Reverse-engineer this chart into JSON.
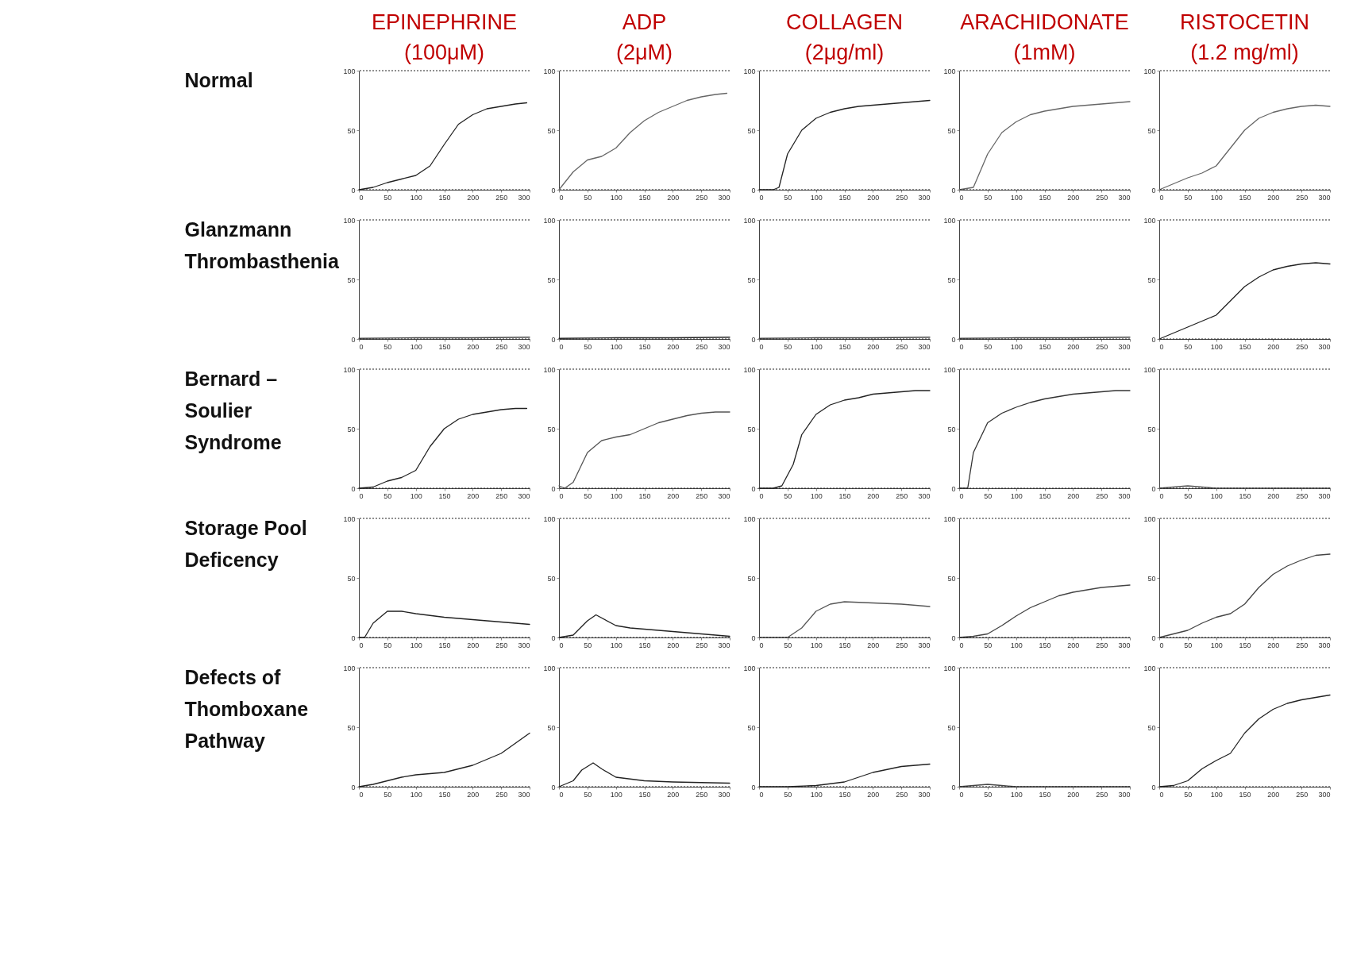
{
  "chart_data": [
    {
      "type": "line",
      "title": "EPINEPHRINE\n(100μM)",
      "ylabel": "Normal",
      "x": [
        0,
        25,
        50,
        75,
        100,
        125,
        150,
        175,
        200,
        225,
        250,
        275,
        295
      ],
      "values": [
        0,
        2,
        6,
        9,
        12,
        20,
        38,
        55,
        63,
        68,
        70,
        72,
        73
      ],
      "color": "#222222",
      "xlim": [
        0,
        300
      ],
      "xticks": [
        0,
        50,
        100,
        150,
        200,
        250,
        300
      ],
      "ylim": [
        0,
        100
      ],
      "yticks": [
        0,
        50,
        100
      ],
      "ref_lines": [
        {
          "axis": "y",
          "value": 0,
          "line_style": "dotted"
        },
        {
          "axis": "y",
          "value": 100,
          "line_style": "dotted"
        }
      ]
    },
    {
      "type": "line",
      "title": "ADP\n(2μM)",
      "x": [
        0,
        25,
        50,
        75,
        100,
        125,
        150,
        175,
        200,
        225,
        250,
        275,
        295
      ],
      "values": [
        0,
        15,
        25,
        28,
        35,
        48,
        58,
        65,
        70,
        75,
        78,
        80,
        81
      ],
      "color": "#666666",
      "xlim": [
        0,
        300
      ],
      "xticks": [
        0,
        50,
        100,
        150,
        200,
        250,
        300
      ],
      "ylim": [
        0,
        100
      ],
      "yticks": [
        0,
        50,
        100
      ],
      "ref_lines": [
        {
          "axis": "y",
          "value": 0,
          "line_style": "dotted"
        },
        {
          "axis": "y",
          "value": 100,
          "line_style": "dotted"
        }
      ]
    },
    {
      "type": "line",
      "title": "COLLAGEN\n(2μg/ml)",
      "x": [
        0,
        25,
        35,
        50,
        75,
        100,
        125,
        150,
        175,
        200,
        225,
        250,
        275,
        300
      ],
      "values": [
        0,
        0,
        2,
        30,
        50,
        60,
        65,
        68,
        70,
        71,
        72,
        73,
        74,
        75
      ],
      "color": "#222222",
      "xlim": [
        0,
        300
      ],
      "xticks": [
        0,
        50,
        100,
        150,
        200,
        250,
        300
      ],
      "ylim": [
        0,
        100
      ],
      "yticks": [
        0,
        50,
        100
      ],
      "ref_lines": [
        {
          "axis": "y",
          "value": 0,
          "line_style": "dotted"
        },
        {
          "axis": "y",
          "value": 100,
          "line_style": "dotted"
        }
      ]
    },
    {
      "type": "line",
      "title": "ARACHIDONATE\n(1mM)",
      "x": [
        0,
        25,
        50,
        75,
        100,
        125,
        150,
        175,
        200,
        225,
        250,
        275,
        300
      ],
      "values": [
        0,
        2,
        30,
        48,
        57,
        63,
        66,
        68,
        70,
        71,
        72,
        73,
        74
      ],
      "color": "#666666",
      "xlim": [
        0,
        300
      ],
      "xticks": [
        0,
        50,
        100,
        150,
        200,
        250,
        300
      ],
      "ylim": [
        0,
        100
      ],
      "yticks": [
        0,
        50,
        100
      ],
      "ref_lines": [
        {
          "axis": "y",
          "value": 0,
          "line_style": "dotted"
        },
        {
          "axis": "y",
          "value": 100,
          "line_style": "dotted"
        }
      ]
    },
    {
      "type": "line",
      "title": "RISTOCETIN\n(1.2 mg/ml)",
      "x": [
        0,
        25,
        50,
        75,
        100,
        125,
        150,
        175,
        200,
        225,
        250,
        275,
        300
      ],
      "values": [
        0,
        5,
        10,
        14,
        20,
        35,
        50,
        60,
        65,
        68,
        70,
        71,
        70
      ],
      "color": "#666666",
      "xlim": [
        0,
        300
      ],
      "xticks": [
        0,
        50,
        100,
        150,
        200,
        250,
        300
      ],
      "ylim": [
        0,
        100
      ],
      "yticks": [
        0,
        50,
        100
      ],
      "ref_lines": [
        {
          "axis": "y",
          "value": 0,
          "line_style": "dotted"
        },
        {
          "axis": "y",
          "value": 100,
          "line_style": "dotted"
        }
      ]
    },
    {
      "type": "line",
      "ylabel": "Glanzmann\nThrombasthenia",
      "x": [
        0,
        100,
        200,
        300
      ],
      "values": [
        0.5,
        1,
        1,
        1.5
      ],
      "color": "#444444",
      "xlim": [
        0,
        300
      ],
      "xticks": [
        0,
        50,
        100,
        150,
        200,
        250,
        300
      ],
      "ylim": [
        0,
        100
      ],
      "yticks": [
        0,
        50,
        100
      ],
      "ref_lines": [
        {
          "axis": "y",
          "value": 0,
          "line_style": "dotted"
        },
        {
          "axis": "y",
          "value": 100,
          "line_style": "dotted"
        }
      ]
    },
    {
      "type": "line",
      "x": [
        0,
        100,
        200,
        300
      ],
      "values": [
        0.5,
        1,
        1,
        1.5
      ],
      "color": "#222222",
      "xlim": [
        0,
        300
      ],
      "xticks": [
        0,
        50,
        100,
        150,
        200,
        250,
        300
      ],
      "ylim": [
        0,
        100
      ],
      "yticks": [
        0,
        50,
        100
      ],
      "ref_lines": [
        {
          "axis": "y",
          "value": 0,
          "line_style": "dotted"
        },
        {
          "axis": "y",
          "value": 100,
          "line_style": "dotted"
        }
      ]
    },
    {
      "type": "line",
      "x": [
        0,
        100,
        200,
        300
      ],
      "values": [
        0.5,
        1,
        1,
        1.5
      ],
      "color": "#444444",
      "xlim": [
        0,
        300
      ],
      "xticks": [
        0,
        50,
        100,
        150,
        200,
        250,
        300
      ],
      "ylim": [
        0,
        100
      ],
      "yticks": [
        0,
        50,
        100
      ],
      "ref_lines": [
        {
          "axis": "y",
          "value": 0,
          "line_style": "dotted"
        },
        {
          "axis": "y",
          "value": 100,
          "line_style": "dotted"
        }
      ]
    },
    {
      "type": "line",
      "x": [
        0,
        100,
        200,
        300
      ],
      "values": [
        0.5,
        1,
        1,
        1.5
      ],
      "color": "#444444",
      "xlim": [
        0,
        300
      ],
      "xticks": [
        0,
        50,
        100,
        150,
        200,
        250,
        300
      ],
      "ylim": [
        0,
        100
      ],
      "yticks": [
        0,
        50,
        100
      ],
      "ref_lines": [
        {
          "axis": "y",
          "value": 0,
          "line_style": "dotted"
        },
        {
          "axis": "y",
          "value": 100,
          "line_style": "dotted"
        }
      ]
    },
    {
      "type": "line",
      "x": [
        0,
        25,
        50,
        75,
        100,
        125,
        150,
        175,
        200,
        225,
        250,
        275,
        300
      ],
      "values": [
        0,
        5,
        10,
        15,
        20,
        32,
        44,
        52,
        58,
        61,
        63,
        64,
        63
      ],
      "color": "#222222",
      "xlim": [
        0,
        300
      ],
      "xticks": [
        0,
        50,
        100,
        150,
        200,
        250,
        300
      ],
      "ylim": [
        0,
        100
      ],
      "yticks": [
        0,
        50,
        100
      ],
      "ref_lines": [
        {
          "axis": "y",
          "value": 0,
          "line_style": "dotted"
        },
        {
          "axis": "y",
          "value": 100,
          "line_style": "dotted"
        }
      ]
    },
    {
      "type": "line",
      "ylabel": "Bernard –\nSoulier\nSyndrome",
      "x": [
        0,
        25,
        50,
        75,
        100,
        125,
        150,
        175,
        200,
        225,
        250,
        275,
        295
      ],
      "values": [
        0,
        1,
        6,
        9,
        15,
        35,
        50,
        58,
        62,
        64,
        66,
        67,
        67
      ],
      "color": "#222222",
      "xlim": [
        0,
        300
      ],
      "xticks": [
        0,
        50,
        100,
        150,
        200,
        250,
        300
      ],
      "ylim": [
        0,
        100
      ],
      "yticks": [
        0,
        50,
        100
      ],
      "ref_lines": [
        {
          "axis": "y",
          "value": 0,
          "line_style": "dotted"
        },
        {
          "axis": "y",
          "value": 100,
          "line_style": "dotted"
        }
      ]
    },
    {
      "type": "line",
      "x": [
        0,
        10,
        25,
        50,
        75,
        100,
        125,
        150,
        175,
        200,
        225,
        250,
        275,
        300
      ],
      "values": [
        2,
        0,
        5,
        30,
        40,
        43,
        45,
        50,
        55,
        58,
        61,
        63,
        64,
        64
      ],
      "color": "#555555",
      "xlim": [
        0,
        300
      ],
      "xticks": [
        0,
        50,
        100,
        150,
        200,
        250,
        300
      ],
      "ylim": [
        0,
        100
      ],
      "yticks": [
        0,
        50,
        100
      ],
      "ref_lines": [
        {
          "axis": "y",
          "value": 0,
          "line_style": "dotted"
        },
        {
          "axis": "y",
          "value": 100,
          "line_style": "dotted"
        }
      ]
    },
    {
      "type": "line",
      "x": [
        0,
        25,
        40,
        60,
        75,
        100,
        125,
        150,
        175,
        200,
        225,
        250,
        275,
        300
      ],
      "values": [
        0,
        0,
        2,
        20,
        45,
        62,
        70,
        74,
        76,
        79,
        80,
        81,
        82,
        82
      ],
      "color": "#222222",
      "xlim": [
        0,
        300
      ],
      "xticks": [
        0,
        50,
        100,
        150,
        200,
        250,
        300
      ],
      "ylim": [
        0,
        100
      ],
      "yticks": [
        0,
        50,
        100
      ],
      "ref_lines": [
        {
          "axis": "y",
          "value": 0,
          "line_style": "dotted"
        },
        {
          "axis": "y",
          "value": 100,
          "line_style": "dotted"
        }
      ]
    },
    {
      "type": "line",
      "x": [
        0,
        15,
        25,
        50,
        75,
        100,
        125,
        150,
        175,
        200,
        225,
        250,
        275,
        300
      ],
      "values": [
        0,
        0,
        30,
        55,
        63,
        68,
        72,
        75,
        77,
        79,
        80,
        81,
        82,
        82
      ],
      "color": "#333333",
      "xlim": [
        0,
        300
      ],
      "xticks": [
        0,
        50,
        100,
        150,
        200,
        250,
        300
      ],
      "ylim": [
        0,
        100
      ],
      "yticks": [
        0,
        50,
        100
      ],
      "ref_lines": [
        {
          "axis": "y",
          "value": 0,
          "line_style": "dotted"
        },
        {
          "axis": "y",
          "value": 100,
          "line_style": "dotted"
        }
      ]
    },
    {
      "type": "line",
      "x": [
        0,
        25,
        50,
        75,
        100,
        150,
        200,
        250,
        300
      ],
      "values": [
        0,
        1,
        2,
        1,
        0,
        0,
        0,
        0,
        0
      ],
      "color": "#555555",
      "xlim": [
        0,
        300
      ],
      "xticks": [
        0,
        50,
        100,
        150,
        200,
        250,
        300
      ],
      "ylim": [
        0,
        100
      ],
      "yticks": [
        0,
        50,
        100
      ],
      "ref_lines": [
        {
          "axis": "y",
          "value": 0,
          "line_style": "dotted"
        },
        {
          "axis": "y",
          "value": 100,
          "line_style": "dotted"
        }
      ]
    },
    {
      "type": "line",
      "ylabel": "Storage Pool\nDeficency",
      "x": [
        0,
        10,
        25,
        50,
        75,
        100,
        150,
        200,
        250,
        300
      ],
      "values": [
        0,
        0,
        12,
        22,
        22,
        20,
        17,
        15,
        13,
        11
      ],
      "color": "#222222",
      "xlim": [
        0,
        300
      ],
      "xticks": [
        0,
        50,
        100,
        150,
        200,
        250,
        300
      ],
      "ylim": [
        0,
        100
      ],
      "yticks": [
        0,
        50,
        100
      ],
      "ref_lines": [
        {
          "axis": "y",
          "value": 0,
          "line_style": "dotted"
        },
        {
          "axis": "y",
          "value": 100,
          "line_style": "dotted"
        }
      ]
    },
    {
      "type": "line",
      "x": [
        0,
        25,
        50,
        65,
        100,
        125,
        150,
        200,
        250,
        300
      ],
      "values": [
        0,
        2,
        14,
        19,
        10,
        8,
        7,
        5,
        3,
        1
      ],
      "color": "#222222",
      "xlim": [
        0,
        300
      ],
      "xticks": [
        0,
        50,
        100,
        150,
        200,
        250,
        300
      ],
      "ylim": [
        0,
        100
      ],
      "yticks": [
        0,
        50,
        100
      ],
      "ref_lines": [
        {
          "axis": "y",
          "value": 0,
          "line_style": "dotted"
        },
        {
          "axis": "y",
          "value": 100,
          "line_style": "dotted"
        }
      ]
    },
    {
      "type": "line",
      "x": [
        0,
        25,
        50,
        75,
        100,
        125,
        150,
        200,
        250,
        300
      ],
      "values": [
        0,
        0,
        0,
        8,
        22,
        28,
        30,
        29,
        28,
        26
      ],
      "color": "#555555",
      "xlim": [
        0,
        300
      ],
      "xticks": [
        0,
        50,
        100,
        150,
        200,
        250,
        300
      ],
      "ylim": [
        0,
        100
      ],
      "yticks": [
        0,
        50,
        100
      ],
      "ref_lines": [
        {
          "axis": "y",
          "value": 0,
          "line_style": "dotted"
        },
        {
          "axis": "y",
          "value": 100,
          "line_style": "dotted"
        }
      ]
    },
    {
      "type": "line",
      "x": [
        0,
        25,
        50,
        75,
        100,
        125,
        150,
        175,
        200,
        250,
        300
      ],
      "values": [
        0,
        1,
        3,
        10,
        18,
        25,
        30,
        35,
        38,
        42,
        44
      ],
      "color": "#444444",
      "xlim": [
        0,
        300
      ],
      "xticks": [
        0,
        50,
        100,
        150,
        200,
        250,
        300
      ],
      "ylim": [
        0,
        100
      ],
      "yticks": [
        0,
        50,
        100
      ],
      "ref_lines": [
        {
          "axis": "y",
          "value": 0,
          "line_style": "dotted"
        },
        {
          "axis": "y",
          "value": 100,
          "line_style": "dotted"
        }
      ]
    },
    {
      "type": "line",
      "x": [
        0,
        50,
        75,
        100,
        125,
        150,
        175,
        200,
        225,
        250,
        275,
        300
      ],
      "values": [
        0,
        6,
        12,
        17,
        20,
        28,
        42,
        53,
        60,
        65,
        69,
        70
      ],
      "color": "#444444",
      "xlim": [
        0,
        300
      ],
      "xticks": [
        0,
        50,
        100,
        150,
        200,
        250,
        300
      ],
      "ylim": [
        0,
        100
      ],
      "yticks": [
        0,
        50,
        100
      ],
      "ref_lines": [
        {
          "axis": "y",
          "value": 0,
          "line_style": "dotted"
        },
        {
          "axis": "y",
          "value": 100,
          "line_style": "dotted"
        }
      ]
    },
    {
      "type": "line",
      "ylabel": "Defects of\nThomboxane\nPathway",
      "x": [
        0,
        25,
        50,
        75,
        100,
        150,
        200,
        250,
        300
      ],
      "values": [
        0,
        2,
        5,
        8,
        10,
        12,
        18,
        28,
        45
      ],
      "color": "#222222",
      "xlim": [
        0,
        300
      ],
      "xticks": [
        0,
        50,
        100,
        150,
        200,
        250,
        300
      ],
      "ylim": [
        0,
        100
      ],
      "yticks": [
        0,
        50,
        100
      ],
      "ref_lines": [
        {
          "axis": "y",
          "value": 0,
          "line_style": "dotted"
        },
        {
          "axis": "y",
          "value": 100,
          "line_style": "dotted"
        }
      ]
    },
    {
      "type": "line",
      "x": [
        0,
        25,
        40,
        60,
        75,
        100,
        150,
        200,
        300
      ],
      "values": [
        0,
        5,
        14,
        20,
        15,
        8,
        5,
        4,
        3
      ],
      "color": "#222222",
      "xlim": [
        0,
        300
      ],
      "xticks": [
        0,
        50,
        100,
        150,
        200,
        250,
        300
      ],
      "ylim": [
        0,
        100
      ],
      "yticks": [
        0,
        50,
        100
      ],
      "ref_lines": [
        {
          "axis": "y",
          "value": 0,
          "line_style": "dotted"
        },
        {
          "axis": "y",
          "value": 100,
          "line_style": "dotted"
        }
      ]
    },
    {
      "type": "line",
      "x": [
        0,
        50,
        100,
        150,
        175,
        200,
        250,
        300
      ],
      "values": [
        0,
        0,
        1,
        4,
        8,
        12,
        17,
        19
      ],
      "color": "#222222",
      "xlim": [
        0,
        300
      ],
      "xticks": [
        0,
        50,
        100,
        150,
        200,
        250,
        300
      ],
      "ylim": [
        0,
        100
      ],
      "yticks": [
        0,
        50,
        100
      ],
      "ref_lines": [
        {
          "axis": "y",
          "value": 0,
          "line_style": "dotted"
        },
        {
          "axis": "y",
          "value": 100,
          "line_style": "dotted"
        }
      ]
    },
    {
      "type": "line",
      "x": [
        0,
        25,
        50,
        75,
        100,
        150,
        200,
        250,
        300
      ],
      "values": [
        0,
        1,
        2,
        1,
        0,
        0,
        0,
        0,
        0
      ],
      "color": "#444444",
      "xlim": [
        0,
        300
      ],
      "xticks": [
        0,
        50,
        100,
        150,
        200,
        250,
        300
      ],
      "ylim": [
        0,
        100
      ],
      "yticks": [
        0,
        50,
        100
      ],
      "ref_lines": [
        {
          "axis": "y",
          "value": 0,
          "line_style": "dotted"
        },
        {
          "axis": "y",
          "value": 100,
          "line_style": "dotted"
        }
      ]
    },
    {
      "type": "line",
      "x": [
        0,
        25,
        50,
        75,
        100,
        125,
        150,
        175,
        200,
        225,
        250,
        275,
        300
      ],
      "values": [
        0,
        1,
        5,
        15,
        22,
        28,
        45,
        57,
        65,
        70,
        73,
        75,
        77
      ],
      "color": "#222222",
      "xlim": [
        0,
        300
      ],
      "xticks": [
        0,
        50,
        100,
        150,
        200,
        250,
        300
      ],
      "ylim": [
        0,
        100
      ],
      "yticks": [
        0,
        50,
        100
      ],
      "ref_lines": [
        {
          "axis": "y",
          "value": 0,
          "line_style": "dotted"
        },
        {
          "axis": "y",
          "value": 100,
          "line_style": "dotted"
        }
      ]
    }
  ]
}
